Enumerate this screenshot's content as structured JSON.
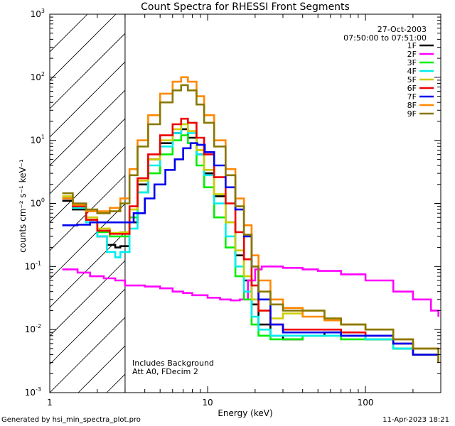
{
  "chart_data": {
    "type": "line",
    "title": "Count Spectra for RHESSI Front Segments",
    "xlabel": "Energy (keV)",
    "ylabel": "counts cm⁻² s⁻¹ keV⁻¹",
    "xscale": "log",
    "yscale": "log",
    "xlim": [
      1,
      300
    ],
    "ylim": [
      0.001,
      1000
    ],
    "x_tick_labels": [
      "1",
      "10",
      "100"
    ],
    "y_tick_labels": [
      {
        "base": "10",
        "exp": "-3"
      },
      {
        "base": "10",
        "exp": "-2"
      },
      {
        "base": "10",
        "exp": "-1"
      },
      {
        "base": "10",
        "exp": "0"
      },
      {
        "base": "10",
        "exp": "1"
      },
      {
        "base": "10",
        "exp": "2"
      },
      {
        "base": "10",
        "exp": "3"
      }
    ],
    "date": "27-Oct-2003",
    "time_range": "07:50:00 to 07:51:00",
    "hatched_region": {
      "x_from": 1,
      "x_to": 3
    },
    "annotations": [
      "Includes Background",
      "Att A0, FDecim 2"
    ],
    "series": [
      {
        "name": "1F",
        "color": "#000000",
        "points": [
          [
            1.2,
            1.1
          ],
          [
            1.4,
            0.8
          ],
          [
            1.7,
            0.5
          ],
          [
            2.0,
            0.3
          ],
          [
            2.3,
            0.22
          ],
          [
            2.6,
            0.2
          ],
          [
            2.8,
            0.21
          ],
          [
            3.2,
            0.5
          ],
          [
            3.6,
            2.0
          ],
          [
            4.2,
            5.0
          ],
          [
            5.0,
            9.0
          ],
          [
            6.0,
            13
          ],
          [
            6.8,
            15
          ],
          [
            7.5,
            11
          ],
          [
            8.5,
            6
          ],
          [
            9.5,
            3
          ],
          [
            11,
            1.3
          ],
          [
            13,
            0.5
          ],
          [
            15,
            0.15
          ],
          [
            17,
            0.06
          ],
          [
            19,
            0.025
          ],
          [
            21,
            0.012
          ],
          [
            25,
            0.008
          ],
          [
            30,
            0.007
          ],
          [
            40,
            0.008
          ],
          [
            55,
            0.009
          ],
          [
            70,
            0.008
          ],
          [
            100,
            0.007
          ],
          [
            150,
            0.005
          ],
          [
            200,
            0.004
          ],
          [
            290,
            0.003
          ]
        ]
      },
      {
        "name": "2F",
        "color": "#ff00ff",
        "points": [
          [
            1.2,
            0.09
          ],
          [
            1.5,
            0.08
          ],
          [
            1.8,
            0.07
          ],
          [
            2.2,
            0.065
          ],
          [
            2.6,
            0.06
          ],
          [
            3.0,
            0.05
          ],
          [
            4.0,
            0.048
          ],
          [
            5.0,
            0.045
          ],
          [
            6.0,
            0.04
          ],
          [
            7.0,
            0.038
          ],
          [
            8.0,
            0.035
          ],
          [
            10,
            0.032
          ],
          [
            12,
            0.03
          ],
          [
            14,
            0.029
          ],
          [
            16,
            0.03
          ],
          [
            18,
            0.06
          ],
          [
            20,
            0.09
          ],
          [
            22,
            0.1
          ],
          [
            25,
            0.1
          ],
          [
            30,
            0.095
          ],
          [
            40,
            0.09
          ],
          [
            50,
            0.085
          ],
          [
            70,
            0.075
          ],
          [
            100,
            0.06
          ],
          [
            150,
            0.04
          ],
          [
            200,
            0.03
          ],
          [
            260,
            0.02
          ],
          [
            290,
            0.016
          ]
        ]
      },
      {
        "name": "3F",
        "color": "#00ee00",
        "points": [
          [
            1.2,
            1.2
          ],
          [
            1.4,
            0.9
          ],
          [
            1.7,
            0.55
          ],
          [
            2.0,
            0.35
          ],
          [
            2.4,
            0.3
          ],
          [
            2.8,
            0.3
          ],
          [
            3.2,
            0.6
          ],
          [
            3.6,
            1.5
          ],
          [
            4.2,
            3.0
          ],
          [
            5.0,
            6.0
          ],
          [
            6.0,
            10
          ],
          [
            6.8,
            12
          ],
          [
            7.5,
            9
          ],
          [
            8.5,
            4
          ],
          [
            9.5,
            1.8
          ],
          [
            11,
            0.6
          ],
          [
            13,
            0.2
          ],
          [
            15,
            0.07
          ],
          [
            17,
            0.03
          ],
          [
            19,
            0.012
          ],
          [
            21,
            0.008
          ],
          [
            25,
            0.007
          ],
          [
            30,
            0.007
          ],
          [
            40,
            0.008
          ],
          [
            55,
            0.008
          ],
          [
            70,
            0.007
          ],
          [
            100,
            0.007
          ],
          [
            150,
            0.005
          ],
          [
            200,
            0.004
          ],
          [
            290,
            0.003
          ]
        ]
      },
      {
        "name": "4F",
        "color": "#00eeee",
        "points": [
          [
            1.2,
            1.2
          ],
          [
            1.4,
            0.85
          ],
          [
            1.7,
            0.5
          ],
          [
            2.0,
            0.3
          ],
          [
            2.3,
            0.17
          ],
          [
            2.6,
            0.14
          ],
          [
            2.8,
            0.17
          ],
          [
            3.2,
            0.4
          ],
          [
            3.6,
            1.5
          ],
          [
            4.2,
            4.0
          ],
          [
            5.0,
            8.0
          ],
          [
            6.0,
            13
          ],
          [
            6.8,
            18
          ],
          [
            7.5,
            13
          ],
          [
            8.5,
            6
          ],
          [
            9.5,
            2.8
          ],
          [
            11,
            1.0
          ],
          [
            13,
            0.3
          ],
          [
            15,
            0.1
          ],
          [
            17,
            0.04
          ],
          [
            19,
            0.016
          ],
          [
            21,
            0.01
          ],
          [
            25,
            0.008
          ],
          [
            30,
            0.008
          ],
          [
            40,
            0.008
          ],
          [
            55,
            0.008
          ],
          [
            70,
            0.008
          ],
          [
            100,
            0.007
          ],
          [
            150,
            0.005
          ],
          [
            200,
            0.004
          ],
          [
            290,
            0.003
          ]
        ]
      },
      {
        "name": "5F",
        "color": "#cccc00",
        "points": [
          [
            1.2,
            1.3
          ],
          [
            1.4,
            0.95
          ],
          [
            1.7,
            0.6
          ],
          [
            2.0,
            0.4
          ],
          [
            2.4,
            0.34
          ],
          [
            2.8,
            0.35
          ],
          [
            3.2,
            0.8
          ],
          [
            3.6,
            2.3
          ],
          [
            4.2,
            5.0
          ],
          [
            5.0,
            10
          ],
          [
            6.0,
            15
          ],
          [
            6.8,
            18
          ],
          [
            7.5,
            14
          ],
          [
            8.5,
            7
          ],
          [
            9.5,
            3.4
          ],
          [
            11,
            1.4
          ],
          [
            13,
            0.5
          ],
          [
            15,
            0.18
          ],
          [
            17,
            0.07
          ],
          [
            19,
            0.03
          ],
          [
            21,
            0.02
          ],
          [
            25,
            0.015
          ],
          [
            30,
            0.018
          ],
          [
            40,
            0.02
          ],
          [
            55,
            0.015
          ],
          [
            70,
            0.012
          ],
          [
            100,
            0.01
          ],
          [
            150,
            0.007
          ],
          [
            200,
            0.005
          ],
          [
            290,
            0.003
          ]
        ]
      },
      {
        "name": "6F",
        "color": "#ee0000",
        "points": [
          [
            1.2,
            1.2
          ],
          [
            1.4,
            0.9
          ],
          [
            1.7,
            0.55
          ],
          [
            2.0,
            0.37
          ],
          [
            2.4,
            0.33
          ],
          [
            2.8,
            0.33
          ],
          [
            3.2,
            0.9
          ],
          [
            3.6,
            2.5
          ],
          [
            4.2,
            6.0
          ],
          [
            5.0,
            12
          ],
          [
            6.0,
            18
          ],
          [
            6.8,
            22
          ],
          [
            7.5,
            19
          ],
          [
            8.5,
            11
          ],
          [
            9.5,
            6
          ],
          [
            11,
            2.6
          ],
          [
            13,
            1.0
          ],
          [
            15,
            0.35
          ],
          [
            17,
            0.13
          ],
          [
            19,
            0.05
          ],
          [
            21,
            0.02
          ],
          [
            25,
            0.012
          ],
          [
            30,
            0.01
          ],
          [
            40,
            0.01
          ],
          [
            55,
            0.01
          ],
          [
            70,
            0.009
          ],
          [
            100,
            0.008
          ],
          [
            150,
            0.006
          ],
          [
            200,
            0.004
          ],
          [
            290,
            0.003
          ]
        ]
      },
      {
        "name": "7F",
        "color": "#0000ee",
        "points": [
          [
            1.2,
            0.45
          ],
          [
            1.5,
            0.46
          ],
          [
            1.8,
            0.5
          ],
          [
            2.2,
            0.5
          ],
          [
            2.6,
            0.5
          ],
          [
            3.0,
            0.5
          ],
          [
            3.4,
            0.7
          ],
          [
            4.0,
            1.2
          ],
          [
            4.6,
            2.0
          ],
          [
            5.4,
            3.4
          ],
          [
            6.2,
            5.0
          ],
          [
            7.0,
            7.5
          ],
          [
            7.8,
            9.0
          ],
          [
            8.6,
            8.5
          ],
          [
            9.6,
            6.5
          ],
          [
            11,
            4.0
          ],
          [
            13,
            1.8
          ],
          [
            15,
            0.8
          ],
          [
            17,
            0.3
          ],
          [
            19,
            0.1
          ],
          [
            21,
            0.03
          ],
          [
            25,
            0.012
          ],
          [
            30,
            0.009
          ],
          [
            40,
            0.009
          ],
          [
            55,
            0.009
          ],
          [
            70,
            0.008
          ],
          [
            100,
            0.008
          ],
          [
            150,
            0.006
          ],
          [
            200,
            0.004
          ],
          [
            290,
            0.003
          ]
        ]
      },
      {
        "name": "8F",
        "color": "#ff8800",
        "points": [
          [
            1.2,
            1.2
          ],
          [
            1.4,
            0.95
          ],
          [
            1.7,
            0.75
          ],
          [
            2.0,
            0.75
          ],
          [
            2.4,
            0.85
          ],
          [
            2.8,
            1.2
          ],
          [
            3.2,
            3.5
          ],
          [
            3.6,
            10
          ],
          [
            4.2,
            25
          ],
          [
            5.0,
            55
          ],
          [
            6.0,
            85
          ],
          [
            6.8,
            100
          ],
          [
            7.5,
            85
          ],
          [
            8.5,
            50
          ],
          [
            9.5,
            25
          ],
          [
            11,
            10
          ],
          [
            13,
            3.5
          ],
          [
            15,
            1.2
          ],
          [
            17,
            0.45
          ],
          [
            19,
            0.15
          ],
          [
            21,
            0.06
          ],
          [
            25,
            0.03
          ],
          [
            30,
            0.022
          ],
          [
            40,
            0.016
          ],
          [
            55,
            0.014
          ],
          [
            70,
            0.012
          ],
          [
            100,
            0.01
          ],
          [
            150,
            0.007
          ],
          [
            200,
            0.005
          ],
          [
            290,
            0.003
          ]
        ]
      },
      {
        "name": "9F",
        "color": "#887700",
        "points": [
          [
            1.2,
            1.45
          ],
          [
            1.4,
            1.0
          ],
          [
            1.7,
            0.8
          ],
          [
            2.0,
            0.7
          ],
          [
            2.4,
            0.75
          ],
          [
            2.8,
            1.0
          ],
          [
            3.2,
            2.8
          ],
          [
            3.6,
            8
          ],
          [
            4.2,
            18
          ],
          [
            5.0,
            40
          ],
          [
            6.0,
            62
          ],
          [
            6.8,
            75
          ],
          [
            7.5,
            62
          ],
          [
            8.5,
            37
          ],
          [
            9.5,
            19
          ],
          [
            11,
            8
          ],
          [
            13,
            2.8
          ],
          [
            15,
            0.9
          ],
          [
            17,
            0.32
          ],
          [
            19,
            0.1
          ],
          [
            21,
            0.04
          ],
          [
            25,
            0.025
          ],
          [
            30,
            0.02
          ],
          [
            40,
            0.02
          ],
          [
            55,
            0.015
          ],
          [
            70,
            0.012
          ],
          [
            100,
            0.01
          ],
          [
            150,
            0.007
          ],
          [
            200,
            0.005
          ],
          [
            290,
            0.003
          ]
        ]
      }
    ]
  },
  "footer": {
    "generated_by": "Generated by hsi_min_spectra_plot.pro",
    "timestamp": "11-Apr-2023 18:21"
  }
}
